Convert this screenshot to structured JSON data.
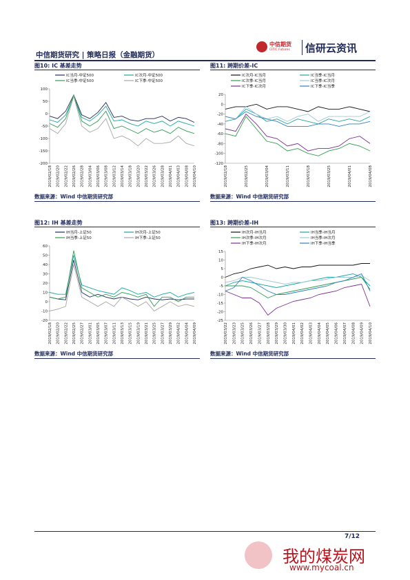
{
  "header": {
    "title": "中信期货研究 | 策略日报（金融期货）",
    "logo": "中信期货",
    "logo_en": "CITIC Futures",
    "brand": "信研云资讯"
  },
  "chart_data": [
    {
      "type": "line",
      "title": "图10: IC 基差走势",
      "source": "数据来源：Wind  中信期货研究部",
      "categories": [
        "2019/02/18",
        "2019/02/20",
        "2019/02/22",
        "2019/02/26",
        "2019/02/28",
        "2019/03/04",
        "2019/03/06",
        "2019/03/08",
        "2019/03/12",
        "2019/03/14",
        "2019/03/18",
        "2019/03/20",
        "2019/03/22",
        "2019/03/26",
        "2019/03/28",
        "2019/04/01",
        "2019/04/03",
        "2019/04/08",
        "2019/04/10"
      ],
      "ylim": [
        -200,
        100
      ],
      "yticks": [
        -200,
        -150,
        -100,
        -50,
        0,
        50,
        100
      ],
      "series": [
        {
          "name": "IC当月-中证500",
          "color": "#1f2a5a",
          "values": [
            -10,
            -20,
            10,
            75,
            -5,
            -20,
            5,
            45,
            -15,
            -10,
            -25,
            -30,
            -20,
            -20,
            -10,
            -30,
            -15,
            -20,
            -35
          ]
        },
        {
          "name": "IC次月-中证500",
          "color": "#1aa7a0",
          "values": [
            -25,
            -35,
            -5,
            70,
            -15,
            -30,
            -5,
            30,
            -30,
            -25,
            -40,
            -50,
            -30,
            -40,
            -30,
            -50,
            -30,
            -40,
            -50
          ]
        },
        {
          "name": "IC当季-中证500",
          "color": "#2e9e4f",
          "values": [
            -40,
            -55,
            -20,
            75,
            -30,
            -50,
            -30,
            10,
            -60,
            -50,
            -65,
            -80,
            -60,
            -75,
            -65,
            -80,
            -55,
            -70,
            -80
          ]
        },
        {
          "name": "IC下季-中证500",
          "color": "#a6a6a6",
          "values": [
            -60,
            -80,
            -40,
            70,
            -50,
            -75,
            -60,
            -20,
            -100,
            -90,
            -105,
            -130,
            -100,
            -120,
            -120,
            -115,
            -90,
            -120,
            -130
          ]
        }
      ]
    },
    {
      "type": "line",
      "title": "图11: 跨期价差-IC",
      "source": "数据来源：Wind  中信期货研究部",
      "categories": [
        "2019/02/18",
        null,
        "2019/02/25",
        null,
        "2019/03/04",
        null,
        "2019/03/11",
        null,
        "2019/03/18",
        null,
        "2019/03/25",
        null,
        "2019/04/01",
        null,
        "2019/04/08"
      ],
      "ylim": [
        -120,
        20
      ],
      "yticks": [
        -120,
        -100,
        -80,
        -60,
        -40,
        -20,
        0,
        20
      ],
      "series": [
        {
          "name": "IC次月-IC当月",
          "color": "#111111",
          "values": [
            -10,
            -5,
            -5,
            0,
            -10,
            -5,
            -5,
            -10,
            -15,
            -5,
            -10,
            -10,
            -5,
            -10,
            -15
          ]
        },
        {
          "name": "IC当季-IC当月",
          "color": "#1aa7a0",
          "values": [
            -35,
            -30,
            -10,
            -20,
            -35,
            -30,
            -40,
            -30,
            -35,
            -40,
            -30,
            -35,
            -30,
            -35,
            -25
          ]
        },
        {
          "name": "IC次季-IC当月",
          "color": "#2e9e4f",
          "values": [
            -60,
            -65,
            -25,
            -50,
            -75,
            -80,
            -95,
            -90,
            -100,
            -105,
            -95,
            -90,
            -80,
            -85,
            -95
          ]
        },
        {
          "name": "IC当季-IC次月",
          "color": "#9ec9d6",
          "values": [
            -25,
            -30,
            -5,
            -20,
            -30,
            -25,
            -35,
            -25,
            -20,
            -35,
            -25,
            -25,
            -25,
            -25,
            -15
          ]
        },
        {
          "name": "IC下季-IC次月",
          "color": "#7b2f8e",
          "values": [
            -50,
            -55,
            -20,
            -40,
            -65,
            -70,
            -85,
            -80,
            -95,
            -90,
            -90,
            -85,
            -70,
            -65,
            -80
          ]
        },
        {
          "name": "IC下季-IC当季",
          "color": "#2f7fc1",
          "values": [
            -25,
            -30,
            -15,
            -25,
            -30,
            -35,
            -45,
            -45,
            -45,
            -40,
            -40,
            -45,
            -40,
            -40,
            -35
          ]
        }
      ]
    },
    {
      "type": "line",
      "title": "图12: IH 基差走势",
      "source": "数据来源：Wind  中信期货研究部",
      "categories": [
        "2019/02/18",
        "2019/02/20",
        "2019/02/22",
        "2019/02/25",
        "2019/02/27",
        "2019/03/01",
        "2019/03/05",
        "2019/03/07",
        "2019/03/11",
        "2019/03/13",
        "2019/03/15",
        "2019/03/19",
        "2019/03/21",
        "2019/03/25",
        "2019/03/27",
        "2019/03/29",
        "2019/04/02",
        "2019/04/04",
        "2019/04/09"
      ],
      "ylim": [
        -20,
        60
      ],
      "yticks": [
        -20,
        -10,
        0,
        10,
        20,
        30,
        40,
        50,
        60
      ],
      "series": [
        {
          "name": "IH当月-上证50",
          "color": "#1f2a5a",
          "values": [
            5,
            3,
            2,
            45,
            10,
            5,
            8,
            5,
            3,
            5,
            3,
            2,
            5,
            3,
            2,
            3,
            2,
            3,
            3
          ]
        },
        {
          "name": "IH次月-上证50",
          "color": "#1aa7a0",
          "values": [
            10,
            8,
            8,
            50,
            18,
            15,
            12,
            10,
            8,
            15,
            12,
            8,
            10,
            5,
            8,
            10,
            5,
            8,
            10
          ]
        },
        {
          "name": "IH当季-上证50",
          "color": "#2e9e4f",
          "values": [
            5,
            3,
            5,
            55,
            15,
            10,
            5,
            8,
            5,
            10,
            8,
            5,
            8,
            -5,
            5,
            5,
            0,
            5,
            5
          ]
        },
        {
          "name": "IH下季-上证50",
          "color": "#a6a6a6",
          "values": [
            -10,
            -8,
            -5,
            40,
            5,
            0,
            -5,
            0,
            -5,
            5,
            0,
            -5,
            0,
            -10,
            -5,
            0,
            -5,
            -3,
            -5
          ]
        }
      ]
    },
    {
      "type": "line",
      "title": "图13: 跨期价差-IH",
      "source": "数据来源：Wind  中信期货研究部",
      "categories": [
        "2019/03/22",
        "2019/03/23",
        "2019/03/25",
        "2019/03/26",
        "2019/03/27",
        "2019/03/28",
        "2019/03/29",
        "2019/03/30",
        "2019/04/01",
        "2019/04/02",
        "2019/04/03",
        "2019/04/04",
        "2019/04/05",
        "2019/04/06",
        "2019/04/07",
        "2019/04/08",
        "2019/04/09",
        "2019/04/10"
      ],
      "ylim": [
        -25,
        15
      ],
      "yticks": [
        -25,
        -20,
        -15,
        -10,
        -5,
        0,
        5,
        10,
        15
      ],
      "series": [
        {
          "name": "IH次月-IH当月",
          "color": "#111111",
          "values": [
            0,
            2,
            3,
            5,
            6,
            7,
            5,
            6,
            5,
            6,
            6,
            7,
            7,
            7,
            7,
            7,
            8,
            8
          ]
        },
        {
          "name": "IH当季-IH当月",
          "color": "#1aa7a0",
          "values": [
            -5,
            -3,
            -2,
            -3,
            -4,
            -5,
            -6,
            -5,
            -4,
            -3,
            -2,
            -1,
            0,
            0,
            1,
            2,
            0,
            -5
          ]
        },
        {
          "name": "IH次季-IH次月",
          "color": "#2e9e4f",
          "values": [
            -5,
            -5,
            -5,
            -6,
            -9,
            -12,
            -10,
            -9,
            -8,
            -7,
            -6,
            -5,
            -4,
            -3,
            -2,
            -1,
            0,
            -7
          ]
        },
        {
          "name": "IH当季-IH次月",
          "color": "#9ec9d6",
          "values": [
            -3,
            -2,
            0,
            0,
            -1,
            -2,
            -3,
            -4,
            -3,
            -3,
            -2,
            -2,
            -1,
            0,
            0,
            0,
            1,
            -2
          ]
        },
        {
          "name": "IH下季-IH次月",
          "color": "#7b2f8e",
          "values": [
            -8,
            -10,
            -12,
            -12,
            -15,
            -22,
            -18,
            -16,
            -14,
            -13,
            -12,
            -10,
            -9,
            -8,
            -6,
            -5,
            -4,
            -17
          ]
        },
        {
          "name": "IH下季-IH当季",
          "color": "#2f7fc1",
          "values": [
            -8,
            -6,
            0,
            -2,
            -5,
            -8,
            -10,
            -10,
            -9,
            -8,
            -7,
            -6,
            -5,
            -3,
            -2,
            0,
            2,
            -8
          ]
        }
      ]
    }
  ],
  "footer": {
    "page": "7/12",
    "watermark": "我的煤炭网",
    "url": "www.mycoal.cn"
  }
}
